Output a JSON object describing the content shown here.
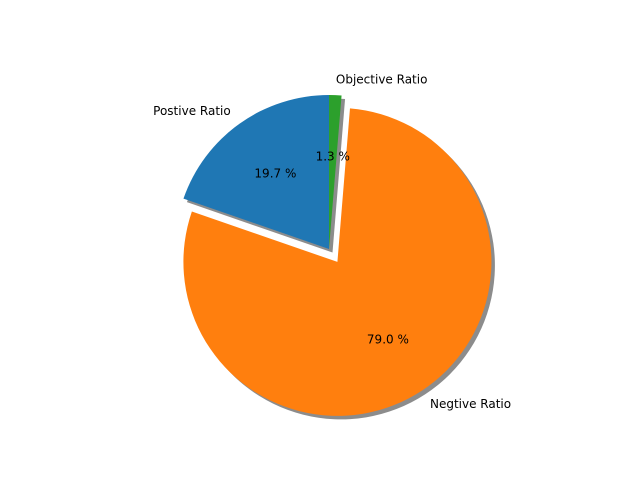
{
  "chart_data": {
    "type": "pie",
    "title": "",
    "slices": [
      {
        "label": "Postive Ratio",
        "value": 19.7,
        "pct_label": "19.7 %",
        "color": "#1f77b4"
      },
      {
        "label": "Negtive Ratio",
        "value": 79.0,
        "pct_label": "79.0 %",
        "color": "#ff7f0e"
      },
      {
        "label": "Objective Ratio",
        "value": 1.3,
        "pct_label": "1.3 %",
        "color": "#2ca02c"
      }
    ],
    "start_angle_deg": 90,
    "direction": "counterclockwise",
    "exploded": [
      "Negtive Ratio"
    ],
    "shadow": true
  }
}
